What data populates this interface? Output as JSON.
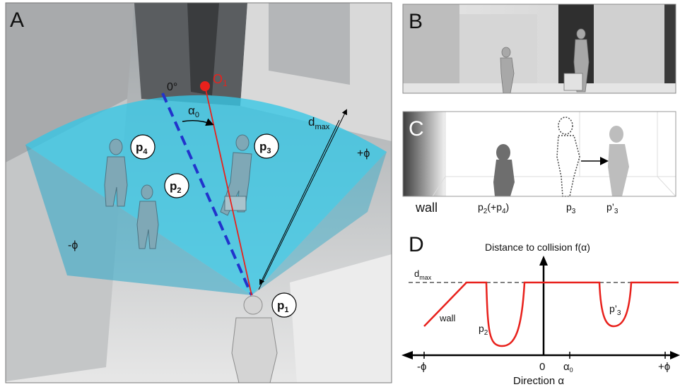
{
  "panel_a": {
    "letter": "A",
    "goal_label": "O",
    "goal_sub": "1",
    "zero_angle": "0°",
    "alpha_label": "α",
    "alpha_sub": "0",
    "dmax_label": "d",
    "dmax_sub": "max",
    "plus_phi": "+ϕ",
    "minus_phi": "-ϕ",
    "pedestrians": [
      {
        "base": "p",
        "sub": "1"
      },
      {
        "base": "p",
        "sub": "2"
      },
      {
        "base": "p",
        "sub": "3"
      },
      {
        "base": "p",
        "sub": "4"
      }
    ]
  },
  "panel_b": {
    "letter": "B"
  },
  "panel_c": {
    "letter": "C",
    "wall": "wall",
    "p2_base": "p",
    "p2_sub": "2",
    "p2_extra": "(+p",
    "p2_extra_sub": "4",
    "p2_close": ")",
    "p3_base": "p",
    "p3_sub": "3",
    "p3p_base": "p’",
    "p3p_sub": "3"
  },
  "panel_d": {
    "letter": "D",
    "y_axis_title": "Distance to collision f(α)",
    "x_axis_title": "Direction α",
    "dmax_base": "d",
    "dmax_sub": "max",
    "tick_minus_phi": "-ϕ",
    "tick_zero": "0",
    "tick_alpha": "α",
    "tick_alpha_sub": "0",
    "tick_plus_phi": "+ϕ",
    "curve_labels": {
      "wall": "wall",
      "p2_base": "p",
      "p2_sub": "2",
      "p3_base": "p’",
      "p3_sub": "3"
    },
    "colors": {
      "curve": "#e8211c",
      "axis": "#000000",
      "dmax_line": "#000000"
    }
  },
  "colors": {
    "fov_fill": "#34c6e6",
    "ray": "#e8211c",
    "goal": "#e8211c",
    "dashed_ref": "#2233cc",
    "zero_label": "#2233cc"
  }
}
